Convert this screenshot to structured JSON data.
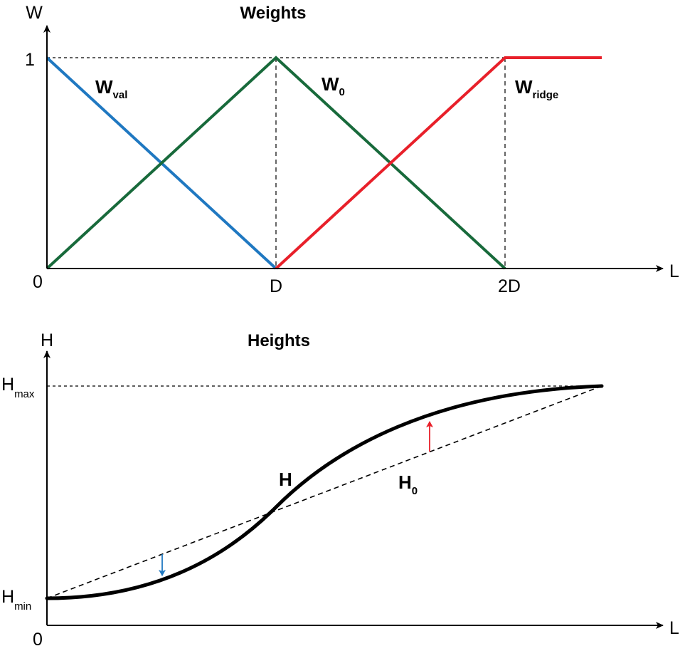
{
  "colors": {
    "w_val": "#1f78c1",
    "w_0": "#186a3b",
    "w_ridge": "#e8202a",
    "h": "#000000",
    "h0": "#000000",
    "arrow_down": "#1f78c1",
    "arrow_up": "#e8202a"
  },
  "weights": {
    "title": "Weights",
    "y_axis_label": "W",
    "x_axis_label": "L",
    "y_tick_top": "1",
    "x_ticks": [
      "0",
      "D",
      "2D"
    ],
    "curves": {
      "w_val": {
        "main": "W",
        "sub": "val"
      },
      "w_0": {
        "main": "W",
        "sub": "0"
      },
      "w_ridge": {
        "main": "W",
        "sub": "ridge"
      }
    }
  },
  "heights": {
    "title": "Heights",
    "y_axis_label": "H",
    "x_axis_label": "L",
    "x_tick_origin": "0",
    "y_tick_max": {
      "main": "H",
      "sub": "max"
    },
    "y_tick_min": {
      "main": "H",
      "sub": "min"
    },
    "curves": {
      "h": {
        "main": "H"
      },
      "h0": {
        "main": "H",
        "sub": "0"
      }
    }
  },
  "chart_data": [
    {
      "type": "line",
      "title": "Weights",
      "xlabel": "L",
      "ylabel": "W",
      "x_ticks": [
        "0",
        "D",
        "2D"
      ],
      "ylim": [
        0,
        1
      ],
      "x_in_units_of_D": true,
      "series": [
        {
          "name": "Wval",
          "x": [
            0,
            1
          ],
          "y": [
            1,
            0
          ]
        },
        {
          "name": "W0",
          "x": [
            0,
            1,
            2
          ],
          "y": [
            0,
            1,
            0
          ]
        },
        {
          "name": "Wridge",
          "x": [
            1,
            2,
            2.43
          ],
          "y": [
            0,
            1,
            1
          ]
        }
      ]
    },
    {
      "type": "line",
      "title": "Heights",
      "xlabel": "L",
      "ylabel": "H",
      "y_ticks": [
        "Hmin",
        "Hmax"
      ],
      "series": [
        {
          "name": "H",
          "shape": "sigmoid from Hmin to Hmax, below H0 for L<D and above H0 for L>D"
        },
        {
          "name": "H0",
          "shape": "straight line from Hmin to Hmax"
        }
      ]
    }
  ]
}
